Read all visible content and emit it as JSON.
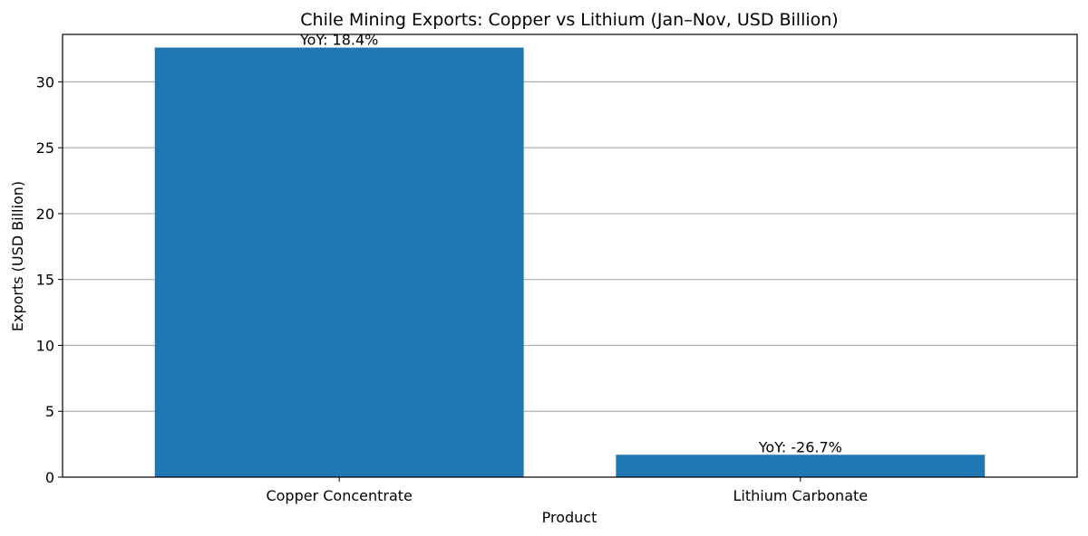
{
  "chart_data": {
    "type": "bar",
    "title": "Chile Mining Exports: Copper vs Lithium (Jan–Nov, USD Billion)",
    "xlabel": "Product",
    "ylabel": "Exports (USD Billion)",
    "categories": [
      "Copper Concentrate",
      "Lithium Carbonate"
    ],
    "values": [
      32.6,
      1.7
    ],
    "annotations": [
      "YoY: 18.4%",
      "YoY: -26.7%"
    ],
    "ylim": [
      0,
      33.6
    ],
    "yticks": [
      0,
      5,
      10,
      15,
      20,
      25,
      30
    ],
    "grid": "y",
    "legend": "none",
    "bar_color": "#1f77b4",
    "grid_color": "#b0b0b0"
  }
}
